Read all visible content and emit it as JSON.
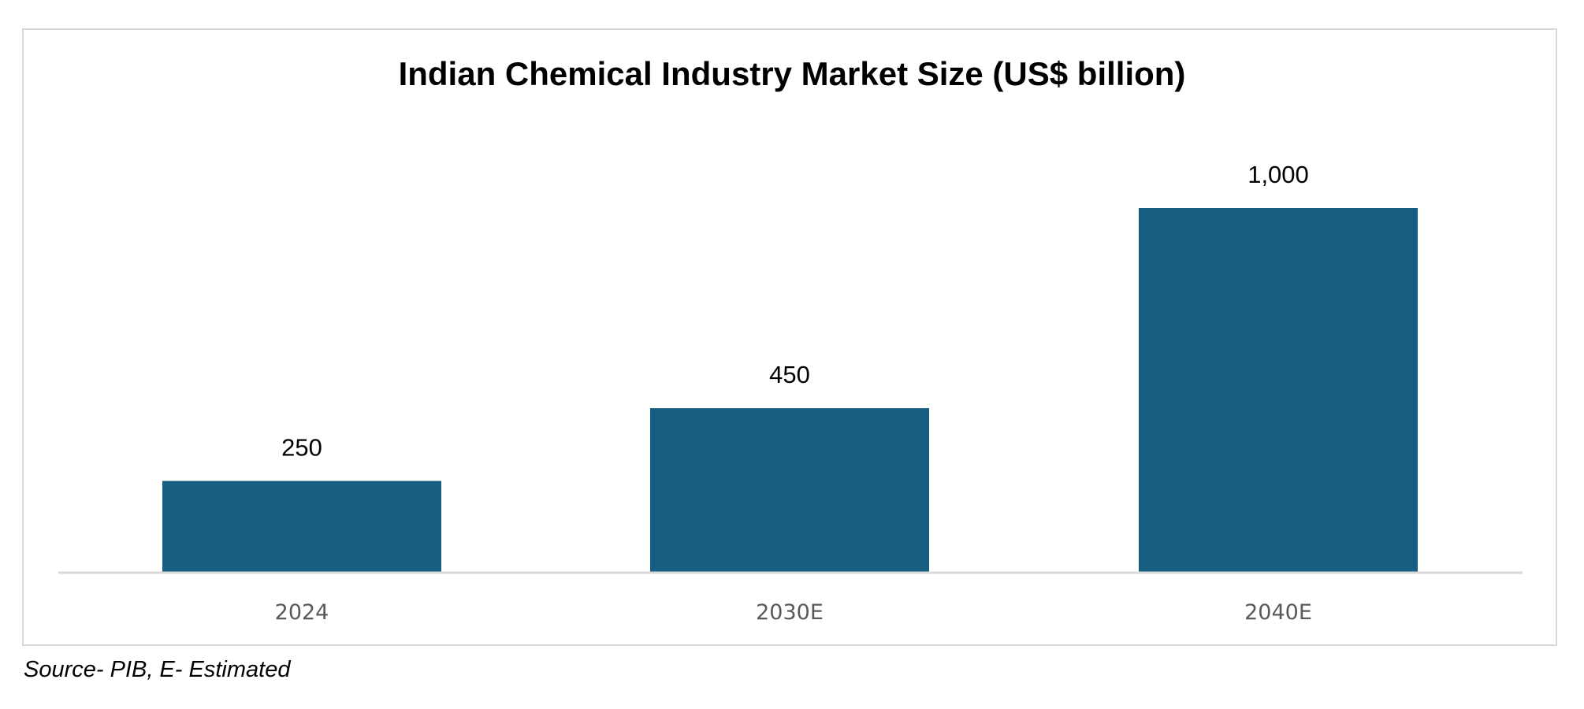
{
  "chart_data": {
    "type": "bar",
    "title": "Indian Chemical Industry Market Size (US$ billion)",
    "categories": [
      "2024",
      "2030E",
      "2040E"
    ],
    "values": [
      250,
      450,
      1000
    ],
    "data_labels": [
      "250",
      "450",
      "1,000"
    ],
    "xlabel": "",
    "ylabel": "",
    "ylim": [
      0,
      1000
    ],
    "grid": false,
    "legend": "none",
    "bar_color": "#175f82"
  },
  "source_note": "Source- PIB, E- Estimated"
}
